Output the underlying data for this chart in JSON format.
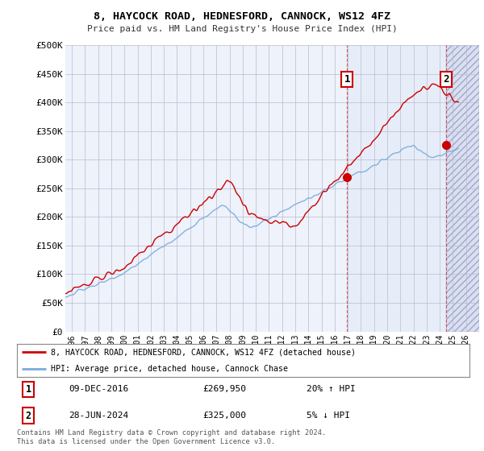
{
  "title": "8, HAYCOCK ROAD, HEDNESFORD, CANNOCK, WS12 4FZ",
  "subtitle": "Price paid vs. HM Land Registry's House Price Index (HPI)",
  "ylabel_ticks": [
    "£0",
    "£50K",
    "£100K",
    "£150K",
    "£200K",
    "£250K",
    "£300K",
    "£350K",
    "£400K",
    "£450K",
    "£500K"
  ],
  "ytick_values": [
    0,
    50000,
    100000,
    150000,
    200000,
    250000,
    300000,
    350000,
    400000,
    450000,
    500000
  ],
  "xlim_start": 1995.5,
  "xlim_end": 2027.0,
  "ylim": [
    0,
    500000
  ],
  "red_line_color": "#cc0000",
  "blue_line_color": "#7aaadd",
  "marker1_x": 2016.94,
  "marker1_y": 269950,
  "marker1_label": "1",
  "marker1_date": "09-DEC-2016",
  "marker1_price": "£269,950",
  "marker1_hpi": "20% ↑ HPI",
  "marker2_x": 2024.49,
  "marker2_y": 325000,
  "marker2_label": "2",
  "marker2_date": "28-JUN-2024",
  "marker2_price": "£325,000",
  "marker2_hpi": "5% ↓ HPI",
  "legend_red": "8, HAYCOCK ROAD, HEDNESFORD, CANNOCK, WS12 4FZ (detached house)",
  "legend_blue": "HPI: Average price, detached house, Cannock Chase",
  "footnote": "Contains HM Land Registry data © Crown copyright and database right 2024.\nThis data is licensed under the Open Government Licence v3.0.",
  "background_color": "#eef2fb",
  "grid_color": "#bbbbcc",
  "vline_color": "#cc0000",
  "marker_box_color": "#cc0000",
  "hatch_color": "#c8d0e8"
}
